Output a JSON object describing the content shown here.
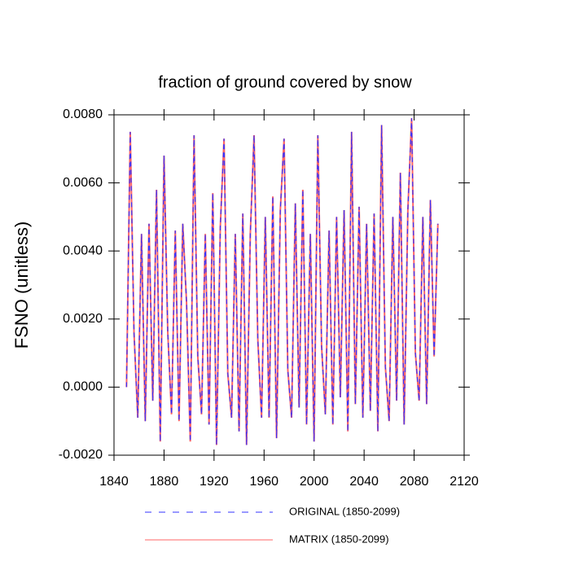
{
  "chart_data": {
    "type": "line",
    "title": "fraction of ground covered by snow",
    "y_label": "FSNO  (unitless)",
    "x": [
      1850,
      1853,
      1856,
      1859,
      1862,
      1865,
      1868,
      1871,
      1874,
      1877,
      1880,
      1883,
      1886,
      1889,
      1892,
      1895,
      1898,
      1901,
      1904,
      1907,
      1910,
      1913,
      1916,
      1919,
      1922,
      1925,
      1928,
      1931,
      1934,
      1937,
      1940,
      1943,
      1946,
      1949,
      1952,
      1955,
      1958,
      1961,
      1964,
      1967,
      1970,
      1973,
      1976,
      1979,
      1982,
      1985,
      1988,
      1991,
      1994,
      1997,
      2000,
      2003,
      2006,
      2009,
      2012,
      2015,
      2018,
      2021,
      2024,
      2027,
      2030,
      2033,
      2036,
      2039,
      2042,
      2045,
      2048,
      2051,
      2054,
      2057,
      2060,
      2063,
      2066,
      2069,
      2072,
      2075,
      2078,
      2081,
      2084,
      2087,
      2090,
      2093,
      2096,
      2099
    ],
    "series": [
      {
        "name": "ORIGINAL (1850-2099)",
        "color": "#3333ff",
        "dash": true,
        "values": [
          0.0,
          0.0075,
          0.0016,
          -0.0009,
          0.0045,
          -0.001,
          0.0048,
          -0.0004,
          0.0058,
          -0.0016,
          0.0068,
          0.0016,
          -0.0008,
          0.0046,
          -0.001,
          0.0048,
          0.0025,
          -0.0016,
          0.0074,
          0.0009,
          -0.0008,
          0.0045,
          -0.0011,
          0.0057,
          -0.0017,
          0.0047,
          0.0073,
          0.0004,
          -0.0009,
          0.0045,
          -0.0013,
          0.0051,
          -0.0017,
          0.0045,
          0.0074,
          0.0014,
          -0.0009,
          0.005,
          -0.0009,
          0.0056,
          -0.0015,
          0.0052,
          0.0073,
          0.0005,
          -0.0009,
          0.0054,
          -0.0006,
          0.0058,
          -0.0011,
          0.0045,
          -0.0016,
          0.0074,
          0.0012,
          -0.0008,
          0.0046,
          -0.0011,
          0.005,
          -0.0003,
          0.0052,
          -0.0013,
          0.0075,
          -0.0005,
          0.0053,
          -0.0009,
          0.0048,
          -0.0007,
          0.0051,
          -0.0013,
          0.0077,
          0.0006,
          -0.001,
          0.005,
          -0.0004,
          0.0063,
          -0.0011,
          0.0052,
          0.0079,
          0.001,
          -0.0004,
          0.005,
          -0.0005,
          0.0055,
          0.0009,
          0.0048
        ]
      },
      {
        "name": "MATRIX (1850-2099)",
        "color": "#ff6666",
        "dash": false,
        "values": [
          0.0,
          0.0075,
          0.0016,
          -0.0009,
          0.0045,
          -0.001,
          0.0048,
          -0.0004,
          0.0058,
          -0.0016,
          0.0068,
          0.0016,
          -0.0008,
          0.0046,
          -0.001,
          0.0048,
          0.0025,
          -0.0016,
          0.0074,
          0.0009,
          -0.0008,
          0.0045,
          -0.0011,
          0.0057,
          -0.0017,
          0.0047,
          0.0073,
          0.0004,
          -0.0009,
          0.0045,
          -0.0013,
          0.0051,
          -0.0017,
          0.0045,
          0.0074,
          0.0014,
          -0.0009,
          0.005,
          -0.0009,
          0.0056,
          -0.0015,
          0.0052,
          0.0073,
          0.0005,
          -0.0009,
          0.0054,
          -0.0006,
          0.0058,
          -0.0011,
          0.0045,
          -0.0016,
          0.0074,
          0.0012,
          -0.0008,
          0.0046,
          -0.0011,
          0.005,
          -0.0003,
          0.0052,
          -0.0013,
          0.0075,
          -0.0005,
          0.0053,
          -0.0009,
          0.0048,
          -0.0007,
          0.0051,
          -0.0013,
          0.0077,
          0.0006,
          -0.001,
          0.005,
          -0.0004,
          0.0063,
          -0.0011,
          0.0052,
          0.0079,
          0.001,
          -0.0004,
          0.005,
          -0.0005,
          0.0055,
          0.0009,
          0.0048
        ]
      }
    ],
    "xlim": [
      1840,
      2120
    ],
    "xticks": [
      1840,
      1880,
      1920,
      1960,
      2000,
      2040,
      2080,
      2120
    ],
    "ylim": [
      -0.002,
      0.008
    ],
    "yticks": [
      {
        "value": -0.002,
        "label": "-0.0020"
      },
      {
        "value": 0,
        "label": "0.0000"
      },
      {
        "value": 0.002,
        "label": "0.0020"
      },
      {
        "value": 0.004,
        "label": "0.0040"
      },
      {
        "value": 0.006,
        "label": "0.0060"
      },
      {
        "value": 0.008,
        "label": "0.0080"
      }
    ],
    "grid": false
  }
}
